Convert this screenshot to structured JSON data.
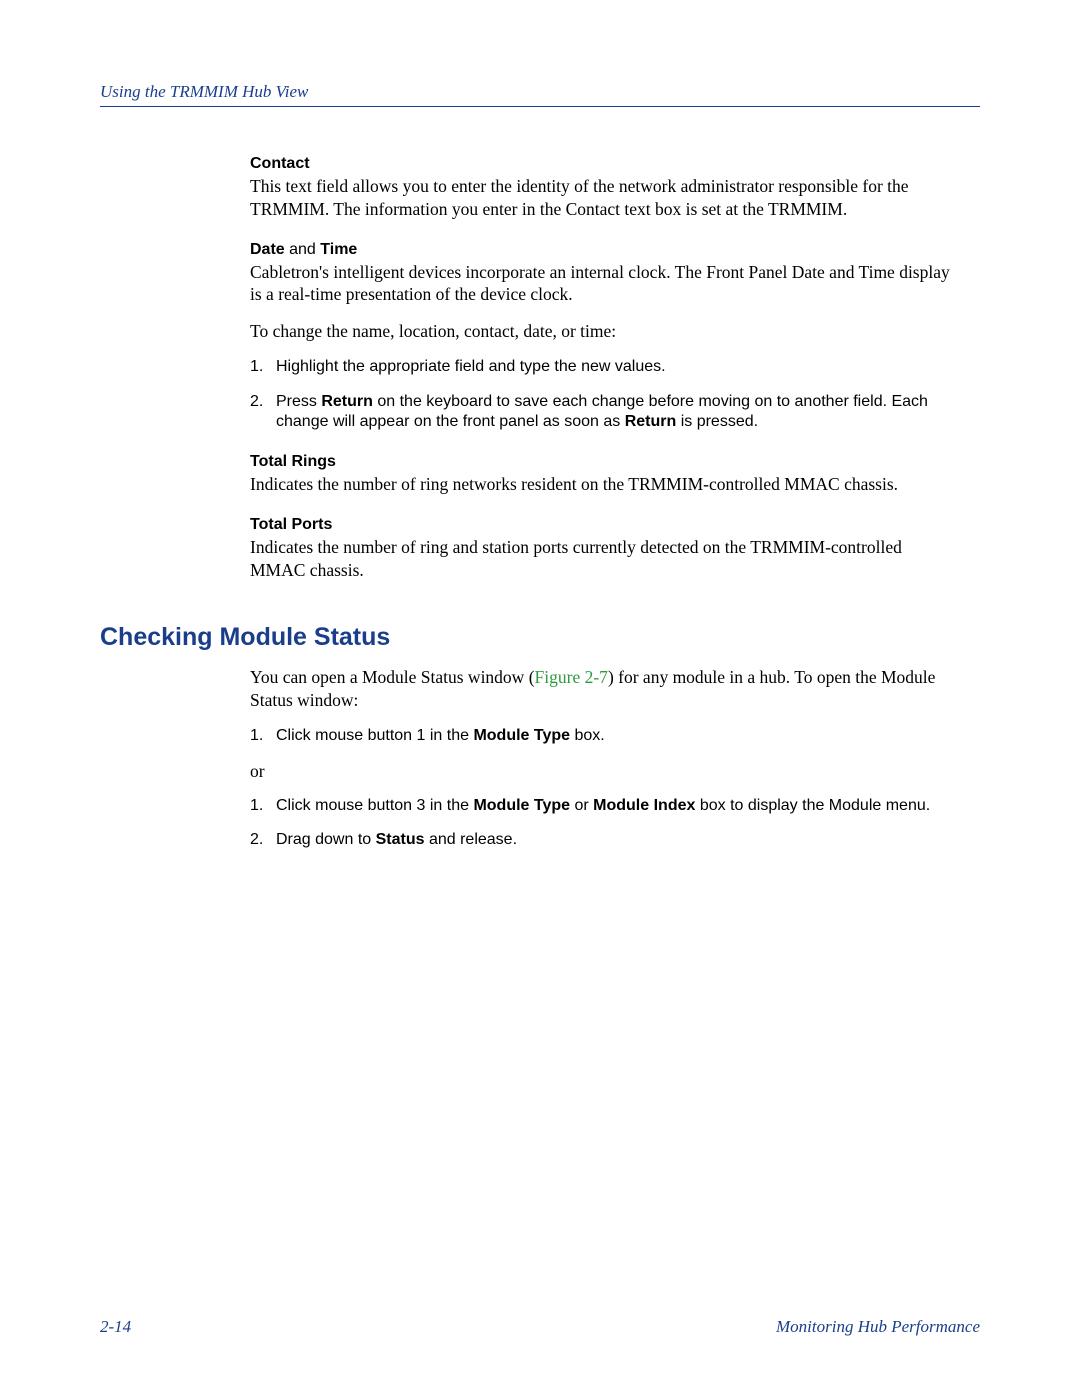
{
  "header": {
    "text": "Using the TRMMIM Hub View"
  },
  "sections": {
    "contact": {
      "label": "Contact",
      "body": "This text field allows you to enter the identity of the network administrator responsible for the TRMMIM. The information you enter in the Contact text box is set at the TRMMIM."
    },
    "datetime": {
      "label_pre": "Date ",
      "label_mid": "and",
      "label_post": " Time",
      "body1": "Cabletron's intelligent devices incorporate an internal clock. The Front Panel Date and Time display is a real-time presentation of the device clock.",
      "body2": "To change the name, location, contact, date, or time:",
      "step1": "Highlight the appropriate field and type the new values.",
      "step2_a": "Press ",
      "step2_b": "Return",
      "step2_c": " on the keyboard to save each change before moving on to another field. Each change will appear on the front panel as soon as ",
      "step2_d": "Return",
      "step2_e": " is pressed."
    },
    "totalrings": {
      "label": "Total Rings",
      "body": "Indicates the number of ring networks resident on the TRMMIM-controlled MMAC chassis."
    },
    "totalports": {
      "label": "Total Ports",
      "body": "Indicates the number of ring and station ports currently detected on the TRMMIM-controlled MMAC chassis."
    }
  },
  "heading2": "Checking Module Status",
  "module": {
    "intro_a": "You can open a Module Status window (",
    "intro_ref": "Figure 2-7",
    "intro_b": ") for any module in a hub. To open the Module Status window:",
    "s1_a": "Click mouse button 1 in the ",
    "s1_b": "Module Type",
    "s1_c": " box.",
    "or": "or",
    "s2_a": "Click mouse button 3 in the ",
    "s2_b": "Module Type",
    "s2_c": " or ",
    "s2_d": "Module Index",
    "s2_e": " box to display the Module menu.",
    "s3_a": "Drag down to ",
    "s3_b": "Status",
    "s3_c": " and release."
  },
  "footer": {
    "left": "2-14",
    "right": "Monitoring Hub Performance"
  }
}
